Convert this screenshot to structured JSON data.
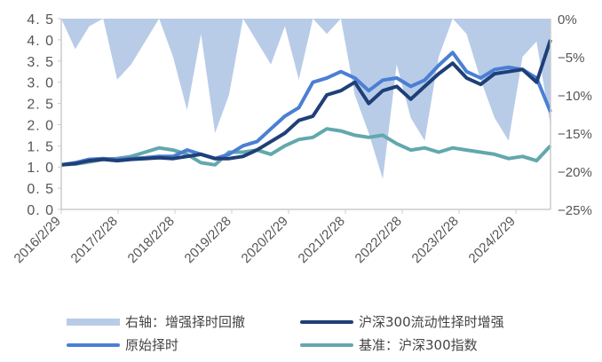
{
  "chart_data": {
    "type": "line",
    "left_axis": {
      "ticks": [
        "0.0",
        "0.5",
        "1.0",
        "1.5",
        "2.0",
        "2.5",
        "3.0",
        "3.5",
        "4.0",
        "4.5"
      ],
      "ylim": [
        0,
        4.5
      ]
    },
    "right_axis": {
      "ticks": [
        "0%",
        "-5%",
        "-10%",
        "-15%",
        "-20%",
        "-25%"
      ],
      "ylim": [
        -25,
        0
      ]
    },
    "x_tick_labels": [
      "2016/2/29",
      "2017/2/28",
      "2018/2/28",
      "2019/2/28",
      "2020/2/29",
      "2021/2/28",
      "2022/2/28",
      "2023/2/28",
      "2024/2/29"
    ],
    "x": [
      "2016Q1",
      "2016Q2",
      "2016Q3",
      "2016Q4",
      "2017Q1",
      "2017Q2",
      "2017Q3",
      "2017Q4",
      "2018Q1",
      "2018Q2",
      "2018Q3",
      "2018Q4",
      "2019Q1",
      "2019Q2",
      "2019Q3",
      "2019Q4",
      "2020Q1",
      "2020Q2",
      "2020Q3",
      "2020Q4",
      "2021Q1",
      "2021Q2",
      "2021Q3",
      "2021Q4",
      "2022Q1",
      "2022Q2",
      "2022Q3",
      "2022Q4",
      "2023Q1",
      "2023Q2",
      "2023Q3",
      "2023Q4",
      "2024Q1",
      "2024Q2",
      "2024Q3",
      "2024Q4"
    ],
    "series": [
      {
        "name": "右轴：增强择时回撤",
        "type": "area",
        "axis": "right",
        "color": "#b8cce8",
        "values": [
          0,
          -4,
          -1,
          0,
          -8,
          -6,
          -3,
          0,
          -5,
          -12,
          -2,
          -15,
          -10,
          0,
          -3,
          -6,
          -1,
          -8,
          0,
          -2,
          0,
          -10,
          -15,
          -21,
          -6,
          -13,
          -16,
          -5,
          0,
          -2,
          -8,
          -13,
          -16,
          -5,
          -3,
          -14
        ]
      },
      {
        "name": "原始择时",
        "type": "line",
        "axis": "left",
        "color": "#4a7fd4",
        "values": [
          1.05,
          1.1,
          1.18,
          1.2,
          1.18,
          1.2,
          1.22,
          1.25,
          1.25,
          1.4,
          1.3,
          1.2,
          1.3,
          1.5,
          1.6,
          1.9,
          2.2,
          2.4,
          3.0,
          3.1,
          3.25,
          3.1,
          2.8,
          3.05,
          3.1,
          2.9,
          3.05,
          3.4,
          3.7,
          3.25,
          3.1,
          3.3,
          3.35,
          3.3,
          3.1,
          2.3
        ]
      },
      {
        "name": "沪深300流动性择时增强",
        "type": "line",
        "axis": "left",
        "color": "#1f3f77",
        "values": [
          1.05,
          1.08,
          1.15,
          1.18,
          1.15,
          1.18,
          1.2,
          1.22,
          1.2,
          1.25,
          1.3,
          1.2,
          1.2,
          1.25,
          1.4,
          1.6,
          1.8,
          2.1,
          2.2,
          2.7,
          2.8,
          3.0,
          2.5,
          2.8,
          2.9,
          2.6,
          2.9,
          3.2,
          3.45,
          3.1,
          2.95,
          3.2,
          3.25,
          3.3,
          3.0,
          4.0
        ]
      },
      {
        "name": "基准：沪深300指数",
        "type": "line",
        "axis": "left",
        "color": "#62a8ad",
        "values": [
          1.05,
          1.07,
          1.12,
          1.18,
          1.2,
          1.25,
          1.35,
          1.45,
          1.4,
          1.3,
          1.1,
          1.05,
          1.35,
          1.35,
          1.4,
          1.3,
          1.5,
          1.65,
          1.7,
          1.9,
          1.85,
          1.75,
          1.7,
          1.75,
          1.55,
          1.4,
          1.45,
          1.35,
          1.45,
          1.4,
          1.35,
          1.3,
          1.2,
          1.25,
          1.15,
          1.5
        ]
      }
    ],
    "legend_position": "bottom",
    "grid": false
  }
}
